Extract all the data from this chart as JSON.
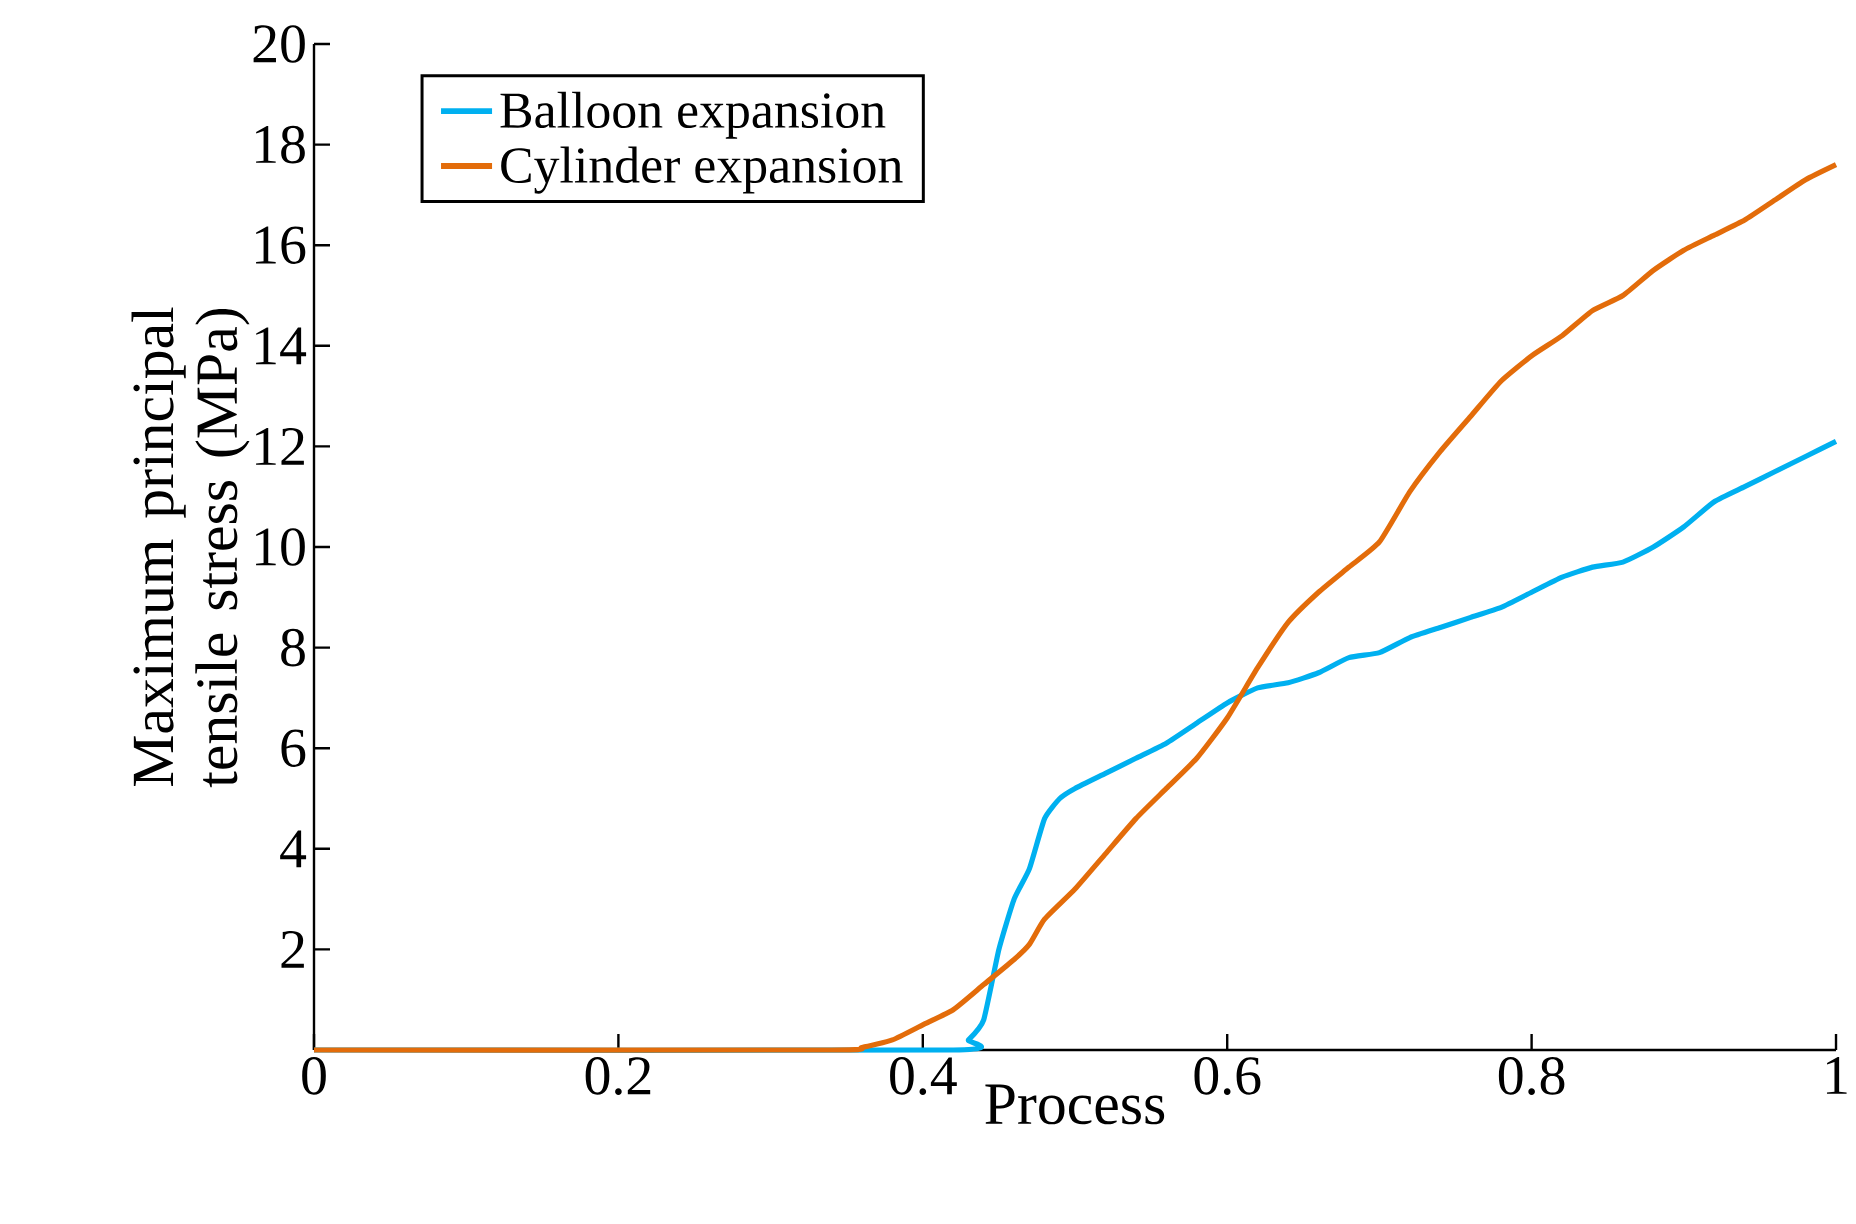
{
  "chart_data": {
    "type": "line",
    "xlabel": "Process",
    "ylabel": "Maximum principal tensile stress (MPa)",
    "xlim": [
      0,
      1
    ],
    "ylim": [
      0,
      20
    ],
    "xticks": [
      0,
      0.2,
      0.4,
      0.6,
      0.8,
      1
    ],
    "yticks": [
      2,
      4,
      6,
      8,
      10,
      12,
      14,
      16,
      18,
      20
    ],
    "grid": false,
    "legend": "top left",
    "marker": "none",
    "line_style": "solid",
    "series": [
      {
        "name": "Balloon expansion",
        "color": "#00b0f0",
        "x": [
          0,
          0.42,
          0.43,
          0.44,
          0.45,
          0.46,
          0.47,
          0.48,
          0.49,
          0.5,
          0.52,
          0.54,
          0.56,
          0.58,
          0.6,
          0.62,
          0.64,
          0.66,
          0.68,
          0.7,
          0.72,
          0.74,
          0.76,
          0.78,
          0.8,
          0.82,
          0.84,
          0.86,
          0.88,
          0.9,
          0.92,
          0.94,
          0.96,
          0.98,
          1
        ],
        "values": [
          0,
          0,
          0.2,
          0.6,
          2.0,
          3.0,
          3.6,
          4.6,
          5.0,
          5.2,
          5.5,
          5.8,
          6.1,
          6.5,
          6.9,
          7.2,
          7.3,
          7.5,
          7.8,
          7.9,
          8.2,
          8.4,
          8.6,
          8.8,
          9.1,
          9.4,
          9.6,
          9.7,
          10.0,
          10.4,
          10.9,
          11.2,
          11.5,
          11.8,
          12.1
        ]
      },
      {
        "name": "Cylinder expansion",
        "color": "#e36c0a",
        "x": [
          0,
          0.34,
          0.36,
          0.38,
          0.4,
          0.42,
          0.44,
          0.46,
          0.47,
          0.48,
          0.5,
          0.52,
          0.54,
          0.56,
          0.58,
          0.6,
          0.62,
          0.64,
          0.66,
          0.68,
          0.7,
          0.72,
          0.74,
          0.76,
          0.78,
          0.8,
          0.82,
          0.84,
          0.86,
          0.88,
          0.9,
          0.92,
          0.94,
          0.96,
          0.98,
          1
        ],
        "values": [
          0,
          0,
          0.05,
          0.2,
          0.5,
          0.8,
          1.3,
          1.8,
          2.1,
          2.6,
          3.2,
          3.9,
          4.6,
          5.2,
          5.8,
          6.6,
          7.6,
          8.5,
          9.1,
          9.6,
          10.1,
          11.1,
          11.9,
          12.6,
          13.3,
          13.8,
          14.2,
          14.7,
          15.0,
          15.5,
          15.9,
          16.2,
          16.5,
          16.9,
          17.3,
          17.6
        ]
      }
    ]
  }
}
